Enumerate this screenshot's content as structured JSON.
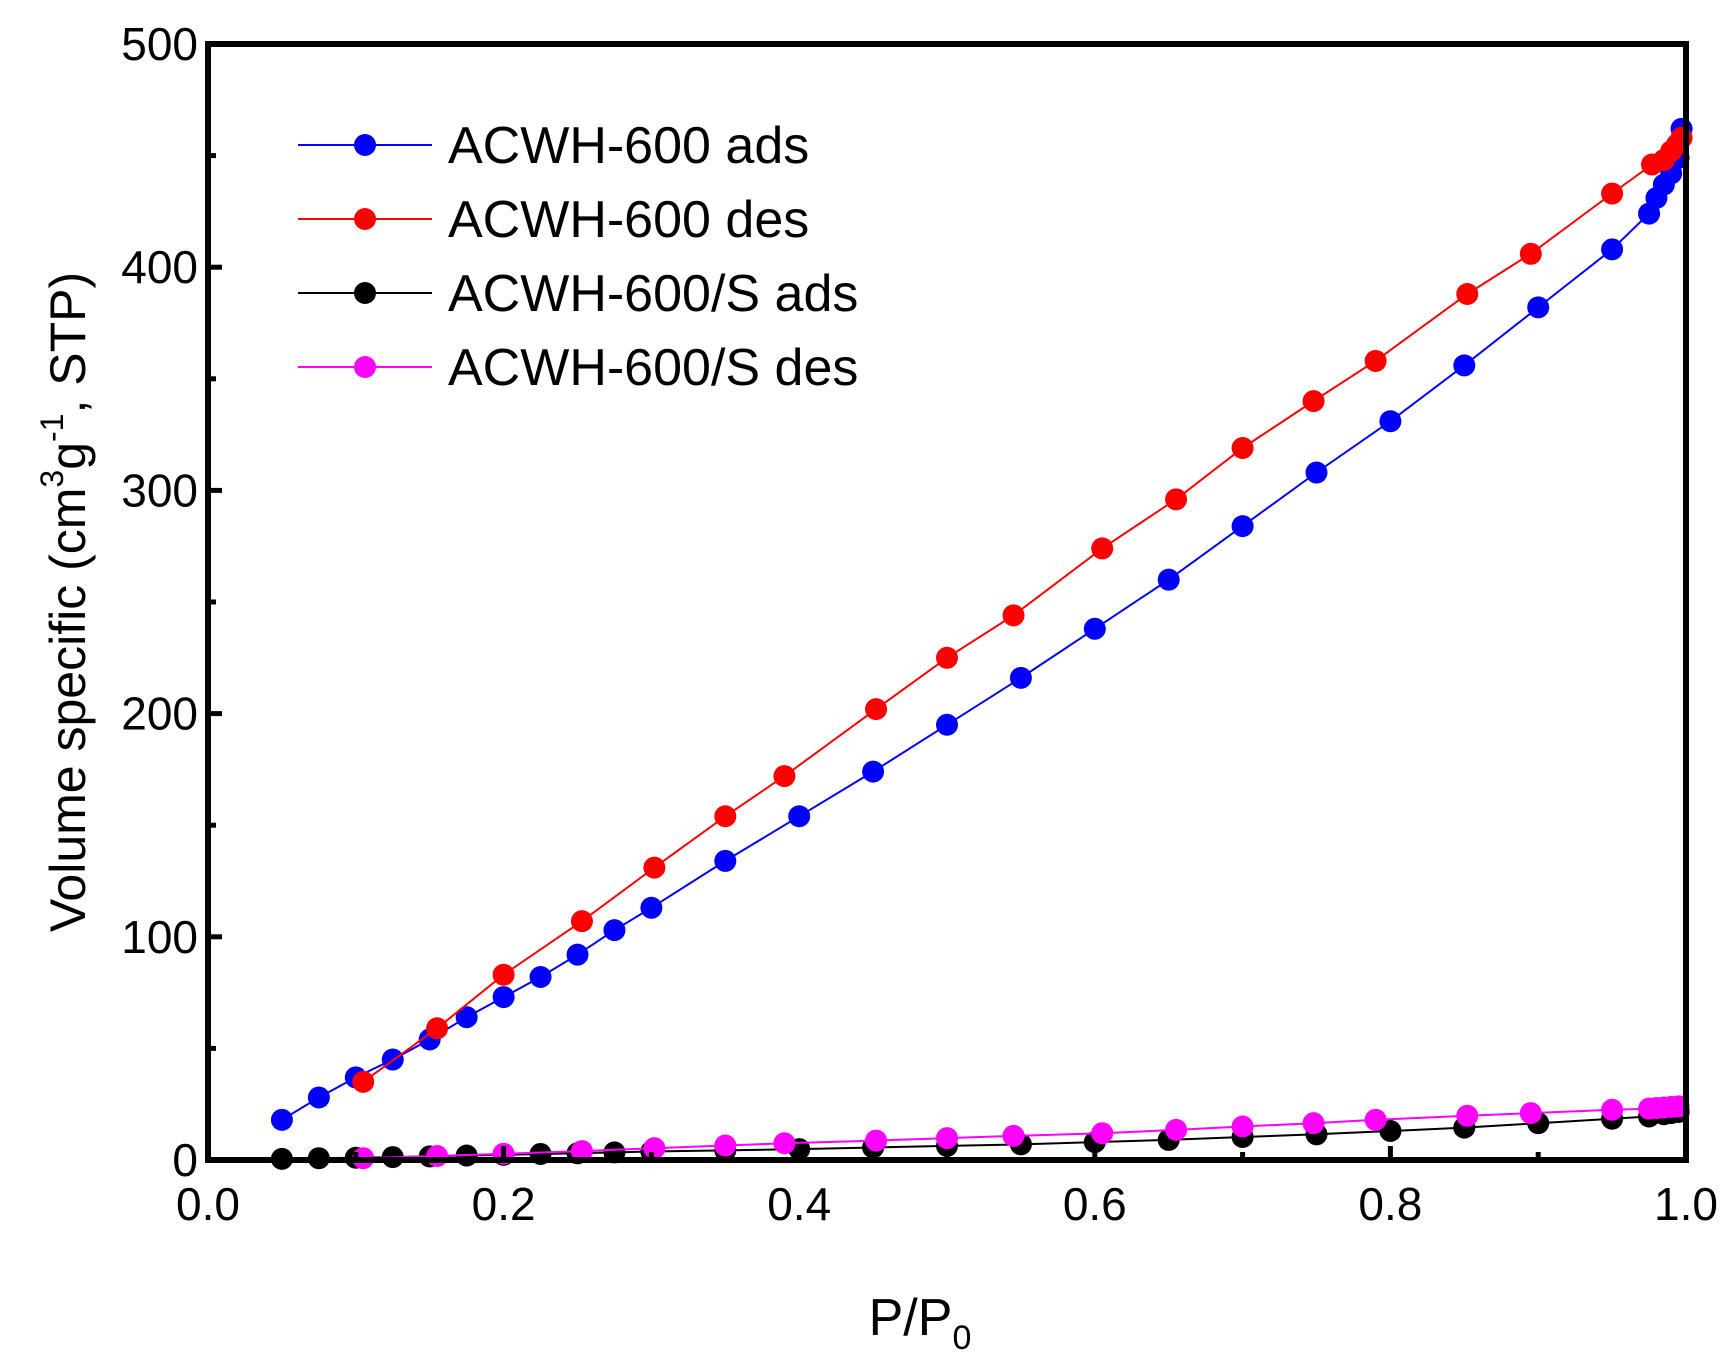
{
  "chart_data": {
    "type": "scatter",
    "title": "",
    "xlabel_main": "P/P",
    "xlabel_sub": "0",
    "ylabel_main": "Volume specific (cm",
    "ylabel_sup1": "3",
    "ylabel_mid": "g",
    "ylabel_sup2": "-1",
    "ylabel_end": ", STP)",
    "xlim": [
      0.0,
      1.0
    ],
    "ylim": [
      0,
      500
    ],
    "xticks": [
      "0.0",
      "0.2",
      "0.4",
      "0.6",
      "0.8",
      "1.0"
    ],
    "yticks": [
      "0",
      "100",
      "200",
      "300",
      "400",
      "500"
    ],
    "legend_position": "top-left",
    "series": [
      {
        "name": "ACWH-600 ads",
        "color": "#0000ff",
        "points": [
          [
            0.05,
            18
          ],
          [
            0.075,
            28
          ],
          [
            0.1,
            37
          ],
          [
            0.125,
            45
          ],
          [
            0.15,
            54
          ],
          [
            0.175,
            64
          ],
          [
            0.2,
            73
          ],
          [
            0.225,
            82
          ],
          [
            0.25,
            92
          ],
          [
            0.275,
            103
          ],
          [
            0.3,
            113
          ],
          [
            0.35,
            134
          ],
          [
            0.4,
            154
          ],
          [
            0.45,
            174
          ],
          [
            0.5,
            195
          ],
          [
            0.55,
            216
          ],
          [
            0.6,
            238
          ],
          [
            0.65,
            260
          ],
          [
            0.7,
            284
          ],
          [
            0.75,
            308
          ],
          [
            0.8,
            331
          ],
          [
            0.85,
            356
          ],
          [
            0.9,
            382
          ],
          [
            0.95,
            408
          ],
          [
            0.975,
            424
          ],
          [
            0.98,
            431
          ],
          [
            0.985,
            437
          ],
          [
            0.99,
            442
          ],
          [
            0.995,
            449
          ],
          [
            0.997,
            462
          ]
        ]
      },
      {
        "name": "ACWH-600 des",
        "color": "#ff0000",
        "points": [
          [
            0.997,
            458
          ],
          [
            0.994,
            455
          ],
          [
            0.99,
            452
          ],
          [
            0.985,
            448
          ],
          [
            0.977,
            446
          ],
          [
            0.95,
            433
          ],
          [
            0.895,
            406
          ],
          [
            0.852,
            388
          ],
          [
            0.79,
            358
          ],
          [
            0.748,
            340
          ],
          [
            0.7,
            319
          ],
          [
            0.655,
            296
          ],
          [
            0.605,
            274
          ],
          [
            0.545,
            244
          ],
          [
            0.5,
            225
          ],
          [
            0.452,
            202
          ],
          [
            0.39,
            172
          ],
          [
            0.35,
            154
          ],
          [
            0.302,
            131
          ],
          [
            0.253,
            107
          ],
          [
            0.2,
            83
          ],
          [
            0.155,
            59
          ],
          [
            0.105,
            35
          ]
        ]
      },
      {
        "name": "ACWH-600/S ads",
        "color": "#000000",
        "points": [
          [
            0.05,
            0.5
          ],
          [
            0.075,
            0.8
          ],
          [
            0.1,
            1
          ],
          [
            0.125,
            1.3
          ],
          [
            0.15,
            1.6
          ],
          [
            0.175,
            2
          ],
          [
            0.2,
            2.3
          ],
          [
            0.225,
            2.7
          ],
          [
            0.25,
            3
          ],
          [
            0.275,
            3.4
          ],
          [
            0.3,
            3.8
          ],
          [
            0.35,
            4.3
          ],
          [
            0.4,
            4.9
          ],
          [
            0.45,
            5.6
          ],
          [
            0.5,
            6.3
          ],
          [
            0.55,
            7
          ],
          [
            0.6,
            8
          ],
          [
            0.65,
            9
          ],
          [
            0.7,
            10.3
          ],
          [
            0.75,
            11.5
          ],
          [
            0.8,
            13
          ],
          [
            0.85,
            14.5
          ],
          [
            0.9,
            16.5
          ],
          [
            0.95,
            18.5
          ],
          [
            0.975,
            19.5
          ],
          [
            0.985,
            20.5
          ],
          [
            0.99,
            21
          ],
          [
            0.995,
            21.5
          ]
        ]
      },
      {
        "name": "ACWH-600/S des",
        "color": "#ff00ff",
        "points": [
          [
            0.995,
            24
          ],
          [
            0.99,
            23.8
          ],
          [
            0.985,
            23.5
          ],
          [
            0.98,
            23.3
          ],
          [
            0.975,
            23
          ],
          [
            0.95,
            22.5
          ],
          [
            0.895,
            21
          ],
          [
            0.852,
            19.8
          ],
          [
            0.79,
            18
          ],
          [
            0.748,
            16.5
          ],
          [
            0.7,
            15
          ],
          [
            0.655,
            13.5
          ],
          [
            0.605,
            12
          ],
          [
            0.545,
            10.8
          ],
          [
            0.5,
            9.8
          ],
          [
            0.452,
            8.7
          ],
          [
            0.39,
            7.5
          ],
          [
            0.35,
            6.5
          ],
          [
            0.302,
            5.3
          ],
          [
            0.253,
            4
          ],
          [
            0.2,
            2.8
          ],
          [
            0.155,
            1.8
          ],
          [
            0.105,
            0.8
          ]
        ]
      }
    ]
  }
}
